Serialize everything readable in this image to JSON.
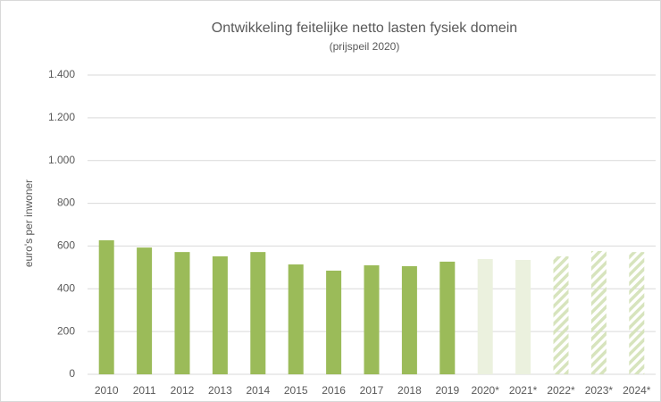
{
  "chart_data": {
    "type": "bar",
    "title": "Ontwikkeling feitelijke netto lasten fysiek domein",
    "subtitle": "(prijspeil 2020)",
    "y_label": "euro's per inwoner",
    "categories": [
      "2010",
      "2011",
      "2012",
      "2013",
      "2014",
      "2015",
      "2016",
      "2017",
      "2018",
      "2019",
      "2020*",
      "2021*",
      "2022*",
      "2023*",
      "2024*"
    ],
    "values": [
      627,
      593,
      572,
      552,
      572,
      514,
      485,
      510,
      506,
      527,
      539,
      535,
      552,
      577,
      572
    ],
    "colors": [
      "#9bbb59",
      "#9bbb59",
      "#9bbb59",
      "#9bbb59",
      "#9bbb59",
      "#9bbb59",
      "#9bbb59",
      "#9bbb59",
      "#9bbb59",
      "#9bbb59",
      "#ebf1de",
      "#ebf1de",
      "#d7e4bd",
      "#d7e4bd",
      "#d7e4bd"
    ],
    "hatched": [
      false,
      false,
      false,
      false,
      false,
      false,
      false,
      false,
      false,
      false,
      false,
      false,
      true,
      true,
      true
    ],
    "ylim": [
      0,
      1400
    ],
    "yticks": [
      0,
      200,
      400,
      600,
      800,
      {
        "value": 1000,
        "label": "1.000"
      },
      {
        "value": 1200,
        "label": "1.200"
      },
      {
        "value": 1400,
        "label": "1.400"
      }
    ],
    "grid": true
  }
}
